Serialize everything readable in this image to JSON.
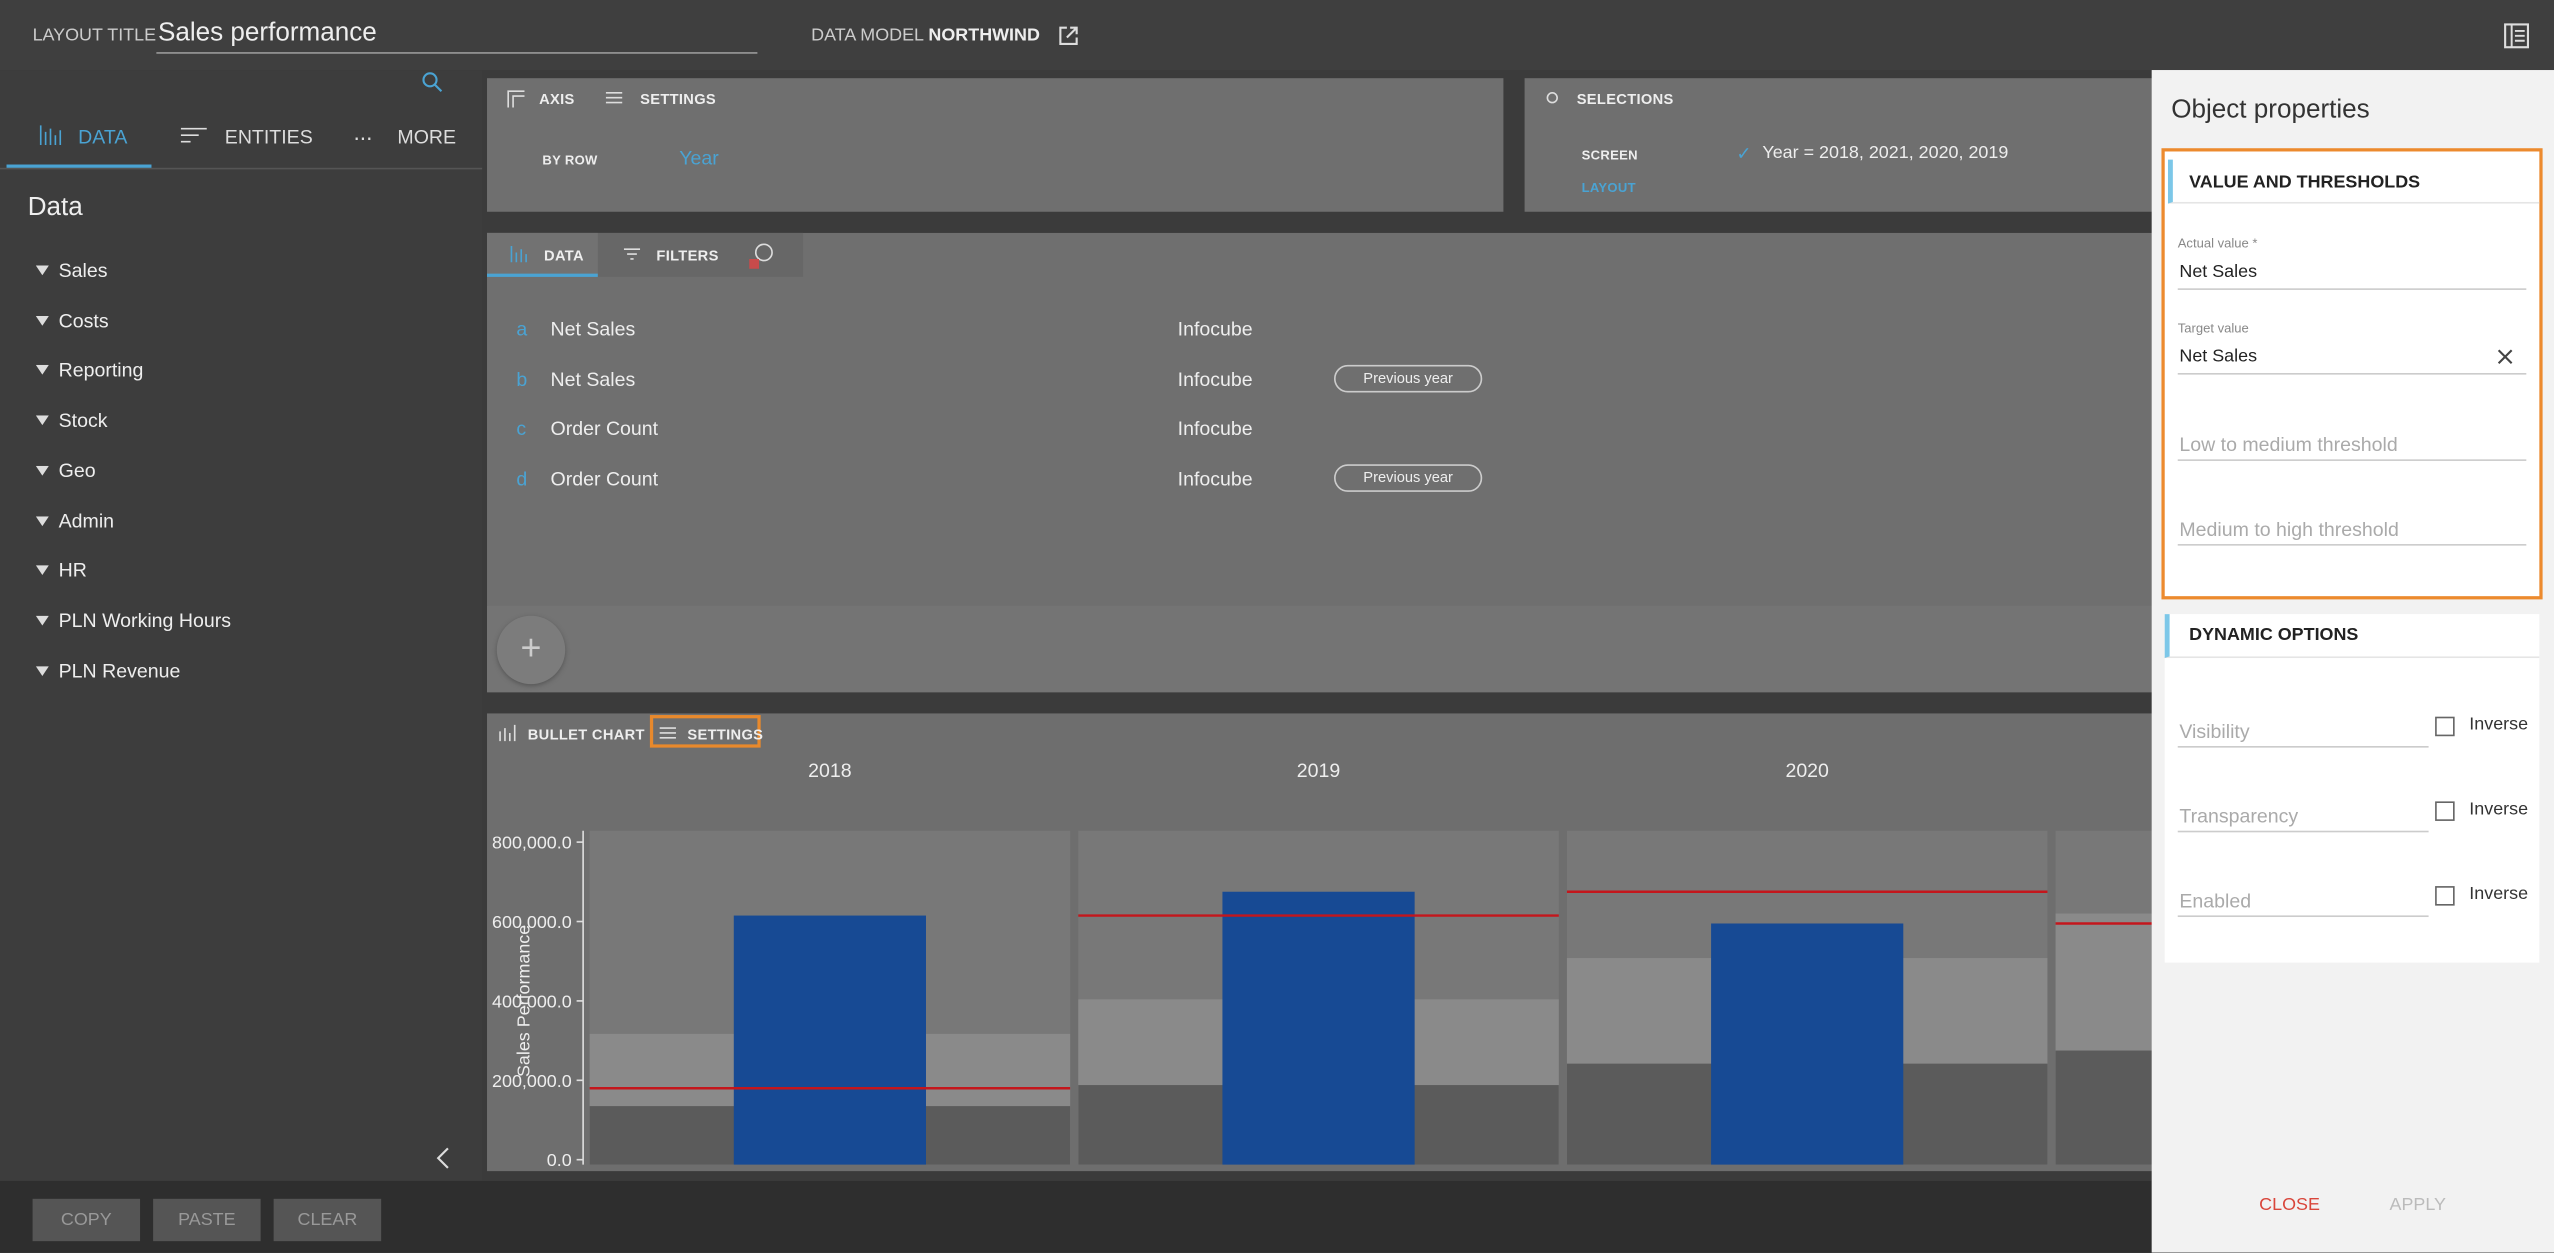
{
  "header": {
    "layout_title_label": "LAYOUT TITLE",
    "layout_title": "Sales performance",
    "data_model_label": "DATA MODEL",
    "data_model": "NORTHWIND"
  },
  "left_panel": {
    "tabs": [
      "DATA",
      "ENTITIES",
      "MORE"
    ],
    "title": "Data",
    "items": [
      "Sales",
      "Costs",
      "Reporting",
      "Stock",
      "Geo",
      "Admin",
      "HR",
      "PLN Working Hours",
      "PLN Revenue"
    ]
  },
  "axis_panel": {
    "tabs": [
      "AXIS",
      "SETTINGS"
    ],
    "row_label": "BY ROW",
    "row_value": "Year"
  },
  "selections_panel": {
    "title": "SELECTIONS",
    "screen_label": "SCREEN",
    "screen_value": "Year = 2018, 2021, 2020, 2019",
    "layout_label": "LAYOUT"
  },
  "data_panel": {
    "tabs": [
      "DATA",
      "FILTERS"
    ],
    "rows": [
      {
        "letter": "a",
        "measure": "Net Sales",
        "source": "Infocube"
      },
      {
        "letter": "b",
        "measure": "Net Sales",
        "source": "Infocube",
        "tag": "Previous year"
      },
      {
        "letter": "c",
        "measure": "Order Count",
        "source": "Infocube"
      },
      {
        "letter": "d",
        "measure": "Order Count",
        "source": "Infocube",
        "tag": "Previous year"
      }
    ]
  },
  "chart_panel": {
    "tabs": [
      "BULLET CHART",
      "SETTINGS"
    ]
  },
  "chart_data": {
    "type": "bullet",
    "y_label": "Sales Performance",
    "categories": [
      "2018",
      "2019",
      "2020",
      null
    ],
    "values": [
      615000,
      675000,
      595000,
      null
    ],
    "targets": [
      180000,
      615000,
      675000,
      595000
    ],
    "range_low": [
      135000,
      188000,
      242000,
      275000
    ],
    "range_high": [
      317000,
      404000,
      508000,
      620000
    ],
    "ylim": [
      0,
      800000
    ],
    "yticks": [
      {
        "value": 0,
        "label": "0.0"
      },
      {
        "value": 200000,
        "label": "200,000.0"
      },
      {
        "value": 400000,
        "label": "400,000.0"
      },
      {
        "value": 600000,
        "label": "600,000.0"
      },
      {
        "value": 800000,
        "label": "800,000.0"
      }
    ],
    "bar_color": "#174a94",
    "target_color": "#c4161c",
    "range_low_color": "#5b5b5b",
    "range_high_color": "#8a8a8a",
    "background_color": "#787878"
  },
  "properties": {
    "title": "Object properties",
    "value_section": {
      "title": "VALUE AND THRESHOLDS",
      "actual_label": "Actual value *",
      "actual_value": "Net Sales",
      "target_label": "Target value",
      "target_value": "Net Sales",
      "low_medium": "Low to medium threshold",
      "medium_high": "Medium to high threshold"
    },
    "dynamic_section": {
      "title": "DYNAMIC OPTIONS",
      "options": [
        {
          "label": "Visibility",
          "check": "Inverse"
        },
        {
          "label": "Transparency",
          "check": "Inverse"
        },
        {
          "label": "Enabled",
          "check": "Inverse"
        }
      ]
    },
    "close": "CLOSE",
    "apply": "APPLY"
  },
  "footer": {
    "buttons": [
      "COPY",
      "PASTE",
      "CLEAR"
    ]
  }
}
